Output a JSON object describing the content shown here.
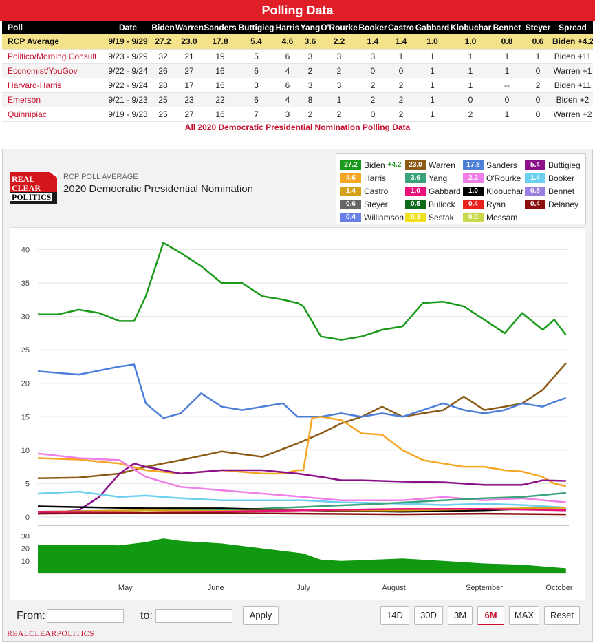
{
  "table": {
    "title": "Polling Data",
    "columns": [
      "Poll",
      "Date",
      "Biden",
      "Warren",
      "Sanders",
      "Buttigieg",
      "Harris",
      "Yang",
      "O'Rourke",
      "Booker",
      "Castro",
      "Gabbard",
      "Klobuchar",
      "Bennet",
      "Steyer",
      "Spread"
    ],
    "rows": [
      [
        "RCP Average",
        "9/19 - 9/29",
        "27.2",
        "23.0",
        "17.8",
        "5.4",
        "4.6",
        "3.6",
        "2.2",
        "1.4",
        "1.4",
        "1.0",
        "1.0",
        "0.8",
        "0.6",
        "Biden +4.2"
      ],
      [
        "Politico/Morning Consult",
        "9/23 - 9/29",
        "32",
        "21",
        "19",
        "5",
        "6",
        "3",
        "3",
        "3",
        "1",
        "1",
        "1",
        "1",
        "1",
        "Biden +11"
      ],
      [
        "Economist/YouGov",
        "9/22 - 9/24",
        "26",
        "27",
        "16",
        "6",
        "4",
        "2",
        "2",
        "0",
        "0",
        "1",
        "1",
        "1",
        "0",
        "Warren +1"
      ],
      [
        "Harvard-Harris",
        "9/22 - 9/24",
        "28",
        "17",
        "16",
        "3",
        "6",
        "3",
        "3",
        "2",
        "2",
        "1",
        "1",
        "--",
        "2",
        "Biden +11"
      ],
      [
        "Emerson",
        "9/21 - 9/23",
        "25",
        "23",
        "22",
        "6",
        "4",
        "8",
        "1",
        "2",
        "2",
        "1",
        "0",
        "0",
        "0",
        "Biden +2"
      ],
      [
        "Quinnipiac",
        "9/19 - 9/23",
        "25",
        "27",
        "16",
        "7",
        "3",
        "2",
        "2",
        "0",
        "2",
        "1",
        "2",
        "1",
        "0",
        "Warren +2"
      ]
    ],
    "footer_link": "All 2020 Democratic Presidential Nomination Polling Data"
  },
  "chart_header": {
    "logo_lines": [
      "REAL",
      "CLEAR",
      "POLITICS"
    ],
    "kicker": "RCP POLL AVERAGE",
    "title": "2020 Democratic Presidential Nomination"
  },
  "legend": [
    {
      "name": "Biden",
      "value": "27.2",
      "change": "+4.2",
      "color": "#1a9a1a"
    },
    {
      "name": "Warren",
      "value": "23.0",
      "color": "#8b5a14"
    },
    {
      "name": "Sanders",
      "value": "17.8",
      "color": "#4d7fd9"
    },
    {
      "name": "Buttigieg",
      "value": "5.4",
      "color": "#8b118b"
    },
    {
      "name": "Harris",
      "value": "4.6",
      "color": "#f5a623"
    },
    {
      "name": "Yang",
      "value": "3.6",
      "color": "#3aa37a"
    },
    {
      "name": "O'Rourke",
      "value": "2.2",
      "color": "#f07ee8"
    },
    {
      "name": "Booker",
      "value": "1.4",
      "color": "#6bd0f0"
    },
    {
      "name": "Castro",
      "value": "1.4",
      "color": "#d4a017"
    },
    {
      "name": "Gabbard",
      "value": "1.0",
      "color": "#e8127a"
    },
    {
      "name": "Klobuchar",
      "value": "1.0",
      "color": "#000000"
    },
    {
      "name": "Bennet",
      "value": "0.8",
      "color": "#9a7fe0"
    },
    {
      "name": "Steyer",
      "value": "0.6",
      "color": "#666666"
    },
    {
      "name": "Bullock",
      "value": "0.5",
      "color": "#0d6b1a"
    },
    {
      "name": "Ryan",
      "value": "0.4",
      "color": "#e8201e"
    },
    {
      "name": "Delaney",
      "value": "0.4",
      "color": "#8b0f0f"
    },
    {
      "name": "Williamson",
      "value": "0.4",
      "color": "#6b7fe8"
    },
    {
      "name": "Sestak",
      "value": "0.3",
      "color": "#f0e020"
    },
    {
      "name": "Messam",
      "value": "0.0",
      "color": "#c8d84a"
    }
  ],
  "controls": {
    "from_label": "From:",
    "to_label": "to:",
    "apply_label": "Apply",
    "range_buttons": [
      "14D",
      "30D",
      "3M",
      "6M",
      "MAX",
      "Reset"
    ],
    "active_range": "6M"
  },
  "footer_brand": "REALCLEARPOLITICS",
  "chart_data": [
    {
      "type": "line",
      "title": "2020 Democratic Presidential Nomination",
      "xlabel": "",
      "ylabel": "",
      "ylim": [
        0,
        42
      ],
      "yticks": [
        0,
        5,
        10,
        15,
        20,
        25,
        30,
        35,
        40
      ],
      "x_month_labels": [
        "May",
        "June",
        "July",
        "August",
        "September",
        "October"
      ],
      "grid": true,
      "series": [
        {
          "name": "Biden",
          "color": "#1a9a1a",
          "x": [
            "2019-04-01",
            "2019-04-08",
            "2019-04-15",
            "2019-04-22",
            "2019-04-29",
            "2019-05-04",
            "2019-05-08",
            "2019-05-14",
            "2019-05-20",
            "2019-05-27",
            "2019-06-03",
            "2019-06-10",
            "2019-06-17",
            "2019-06-24",
            "2019-06-29",
            "2019-07-01",
            "2019-07-07",
            "2019-07-14",
            "2019-07-21",
            "2019-07-28",
            "2019-08-04",
            "2019-08-11",
            "2019-08-18",
            "2019-08-25",
            "2019-09-01",
            "2019-09-08",
            "2019-09-14",
            "2019-09-21",
            "2019-09-25",
            "2019-09-29"
          ],
          "y": [
            30.3,
            30.3,
            31,
            30.5,
            29.3,
            29.3,
            33,
            41,
            39.5,
            37.5,
            35,
            35,
            33,
            32.5,
            32,
            31.5,
            27,
            26.5,
            27,
            28,
            28.5,
            32,
            32.2,
            31.5,
            29.5,
            27.5,
            30.5,
            28,
            29.5,
            27.2
          ]
        },
        {
          "name": "Warren",
          "color": "#8b5a14",
          "x": [
            "2019-04-01",
            "2019-04-15",
            "2019-04-29",
            "2019-05-08",
            "2019-05-20",
            "2019-06-03",
            "2019-06-17",
            "2019-06-29",
            "2019-07-07",
            "2019-07-14",
            "2019-07-21",
            "2019-07-28",
            "2019-08-04",
            "2019-08-11",
            "2019-08-18",
            "2019-08-25",
            "2019-09-01",
            "2019-09-08",
            "2019-09-14",
            "2019-09-21",
            "2019-09-25",
            "2019-09-29"
          ],
          "y": [
            5.8,
            5.9,
            6.5,
            7.5,
            8.5,
            9.8,
            9,
            11,
            12.5,
            14,
            15,
            16.5,
            15,
            15.5,
            16,
            18,
            16,
            16.5,
            17,
            19,
            21,
            23
          ]
        },
        {
          "name": "Sanders",
          "color": "#4d7fd9",
          "x": [
            "2019-04-01",
            "2019-04-15",
            "2019-04-29",
            "2019-05-04",
            "2019-05-08",
            "2019-05-14",
            "2019-05-20",
            "2019-05-27",
            "2019-06-03",
            "2019-06-10",
            "2019-06-17",
            "2019-06-24",
            "2019-06-29",
            "2019-07-07",
            "2019-07-14",
            "2019-07-21",
            "2019-07-28",
            "2019-08-04",
            "2019-08-11",
            "2019-08-18",
            "2019-08-25",
            "2019-09-01",
            "2019-09-08",
            "2019-09-14",
            "2019-09-21",
            "2019-09-25",
            "2019-09-29"
          ],
          "y": [
            21.8,
            21.3,
            22.5,
            22.8,
            17,
            14.8,
            15.5,
            18.5,
            16.5,
            16,
            16.5,
            17,
            15,
            15,
            15.5,
            15,
            15.5,
            15,
            16,
            17,
            16,
            15.5,
            16,
            17,
            16.5,
            17.2,
            17.8
          ]
        },
        {
          "name": "Harris",
          "color": "#f5a623",
          "x": [
            "2019-04-01",
            "2019-04-15",
            "2019-04-29",
            "2019-05-08",
            "2019-05-20",
            "2019-06-03",
            "2019-06-17",
            "2019-06-24",
            "2019-06-29",
            "2019-07-01",
            "2019-07-04",
            "2019-07-07",
            "2019-07-14",
            "2019-07-21",
            "2019-07-28",
            "2019-08-04",
            "2019-08-11",
            "2019-08-18",
            "2019-08-25",
            "2019-09-01",
            "2019-09-08",
            "2019-09-14",
            "2019-09-21",
            "2019-09-25",
            "2019-09-29"
          ],
          "y": [
            8.8,
            8.6,
            8,
            7,
            6.5,
            7,
            6.5,
            6.5,
            7,
            7,
            14.8,
            15,
            14.5,
            12.5,
            12.3,
            10,
            8.5,
            8,
            7.5,
            7.5,
            7,
            6.8,
            6,
            5,
            4.6
          ]
        },
        {
          "name": "Buttigieg",
          "color": "#8b118b",
          "x": [
            "2019-04-01",
            "2019-04-15",
            "2019-04-22",
            "2019-04-29",
            "2019-05-04",
            "2019-05-08",
            "2019-05-20",
            "2019-06-03",
            "2019-06-17",
            "2019-06-29",
            "2019-07-07",
            "2019-07-14",
            "2019-07-21",
            "2019-08-04",
            "2019-08-18",
            "2019-09-01",
            "2019-09-14",
            "2019-09-21",
            "2019-09-29"
          ],
          "y": [
            0.5,
            1,
            3,
            6.5,
            8,
            7.5,
            6.5,
            7,
            7,
            6.5,
            6,
            5.5,
            5.5,
            5.3,
            5.2,
            4.8,
            4.8,
            5.5,
            5.4
          ]
        },
        {
          "name": "O'Rourke",
          "color": "#f07ee8",
          "x": [
            "2019-04-01",
            "2019-04-15",
            "2019-04-29",
            "2019-05-08",
            "2019-05-20",
            "2019-06-03",
            "2019-06-17",
            "2019-07-01",
            "2019-07-14",
            "2019-08-04",
            "2019-08-18",
            "2019-09-01",
            "2019-09-14",
            "2019-09-29"
          ],
          "y": [
            9.5,
            8.8,
            8.5,
            6,
            4.5,
            4,
            3.5,
            3,
            2.5,
            2.5,
            3,
            2.5,
            2.8,
            2.2
          ]
        },
        {
          "name": "Booker",
          "color": "#6bd0f0",
          "x": [
            "2019-04-01",
            "2019-04-15",
            "2019-04-29",
            "2019-05-08",
            "2019-05-20",
            "2019-06-03",
            "2019-06-17",
            "2019-07-01",
            "2019-07-14",
            "2019-08-04",
            "2019-08-18",
            "2019-09-01",
            "2019-09-14",
            "2019-09-29"
          ],
          "y": [
            3.5,
            3.8,
            3,
            3.2,
            2.8,
            2.5,
            2.5,
            2.5,
            2.2,
            2,
            1.8,
            2,
            1.8,
            1.4
          ]
        },
        {
          "name": "Yang",
          "color": "#3aa37a",
          "x": [
            "2019-04-01",
            "2019-05-08",
            "2019-06-03",
            "2019-07-01",
            "2019-07-28",
            "2019-08-18",
            "2019-09-01",
            "2019-09-14",
            "2019-09-29"
          ],
          "y": [
            0.8,
            1,
            1,
            1.5,
            2,
            2.5,
            2.8,
            3,
            3.6
          ]
        },
        {
          "name": "Klobuchar",
          "color": "#000000",
          "x": [
            "2019-04-01",
            "2019-05-08",
            "2019-06-03",
            "2019-07-01",
            "2019-08-04",
            "2019-09-01",
            "2019-09-14",
            "2019-09-29"
          ],
          "y": [
            1.6,
            1.3,
            1.3,
            1,
            0.8,
            1,
            1.2,
            1.0
          ]
        },
        {
          "name": "Castro",
          "color": "#d4a017",
          "x": [
            "2019-04-01",
            "2019-05-08",
            "2019-06-03",
            "2019-07-01",
            "2019-08-04",
            "2019-09-01",
            "2019-09-29"
          ],
          "y": [
            0.8,
            1,
            0.9,
            1,
            1,
            1.2,
            1.4
          ]
        },
        {
          "name": "Gabbard",
          "color": "#e8127a",
          "x": [
            "2019-04-01",
            "2019-05-08",
            "2019-06-03",
            "2019-07-01",
            "2019-08-04",
            "2019-09-01",
            "2019-09-29"
          ],
          "y": [
            0.8,
            0.7,
            0.8,
            1,
            1.2,
            1.2,
            1.0
          ]
        },
        {
          "name": "Delaney",
          "color": "#8b0f0f",
          "x": [
            "2019-04-01",
            "2019-05-08",
            "2019-06-03",
            "2019-07-01",
            "2019-08-04",
            "2019-09-01",
            "2019-09-29"
          ],
          "y": [
            0.5,
            0.6,
            0.6,
            0.5,
            0.4,
            0.5,
            0.4
          ]
        }
      ]
    },
    {
      "type": "area",
      "title": "",
      "ylim": [
        0,
        33
      ],
      "yticks": [
        10,
        20,
        30
      ],
      "series": [
        {
          "name": "Biden",
          "color": "#119911",
          "x": [
            "2019-04-01",
            "2019-04-15",
            "2019-04-29",
            "2019-05-08",
            "2019-05-14",
            "2019-05-20",
            "2019-06-03",
            "2019-06-17",
            "2019-07-01",
            "2019-07-07",
            "2019-07-14",
            "2019-08-04",
            "2019-08-18",
            "2019-09-01",
            "2019-09-14",
            "2019-09-29"
          ],
          "y": [
            23,
            23,
            22.5,
            25,
            28,
            26,
            24,
            20,
            16,
            11,
            10,
            12,
            10,
            8,
            7,
            4.2
          ]
        }
      ]
    }
  ]
}
